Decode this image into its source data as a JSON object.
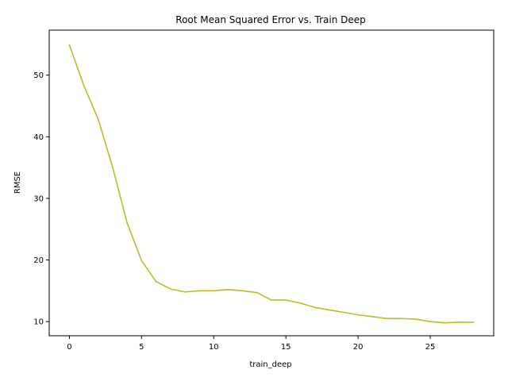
{
  "chart_data": {
    "type": "line",
    "title": "Root Mean Squared Error vs. Train Deep",
    "xlabel": "train_deep",
    "ylabel": "RMSE",
    "xlim": [
      -1.4,
      29.4
    ],
    "ylim": [
      7.7,
      57.3
    ],
    "xticks": [
      0,
      5,
      10,
      15,
      20,
      25
    ],
    "yticks": [
      10,
      20,
      30,
      40,
      50
    ],
    "grid": false,
    "legend": "none",
    "series": [
      {
        "color": "#bcbd22",
        "x": [
          0,
          1,
          2,
          3,
          4,
          5,
          6,
          7,
          8,
          9,
          10,
          11,
          12,
          13,
          14,
          15,
          16,
          17,
          18,
          19,
          20,
          21,
          22,
          23,
          24,
          25,
          26,
          27,
          28
        ],
        "values": [
          54.9,
          48.3,
          42.8,
          35.0,
          26.0,
          19.9,
          16.5,
          15.3,
          14.8,
          15.0,
          15.0,
          15.2,
          15.0,
          14.7,
          13.5,
          13.5,
          13.0,
          12.3,
          11.9,
          11.5,
          11.1,
          10.8,
          10.5,
          10.5,
          10.4,
          10.0,
          9.8,
          9.9,
          9.9
        ]
      }
    ]
  }
}
